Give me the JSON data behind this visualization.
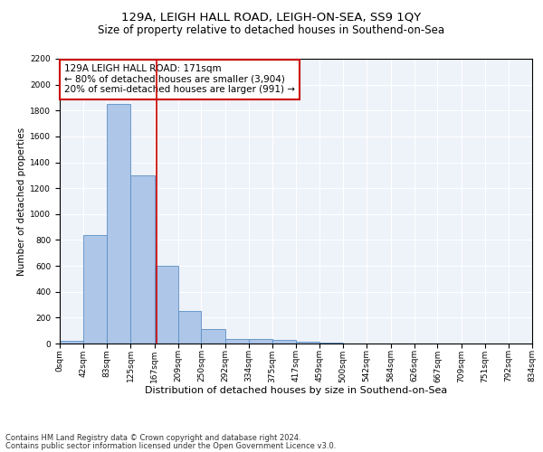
{
  "title1": "129A, LEIGH HALL ROAD, LEIGH-ON-SEA, SS9 1QY",
  "title2": "Size of property relative to detached houses in Southend-on-Sea",
  "xlabel": "Distribution of detached houses by size in Southend-on-Sea",
  "ylabel": "Number of detached properties",
  "footer1": "Contains HM Land Registry data © Crown copyright and database right 2024.",
  "footer2": "Contains public sector information licensed under the Open Government Licence v3.0.",
  "annotation_line1": "129A LEIGH HALL ROAD: 171sqm",
  "annotation_line2": "← 80% of detached houses are smaller (3,904)",
  "annotation_line3": "20% of semi-detached houses are larger (991) →",
  "bar_edges": [
    0,
    42,
    83,
    125,
    167,
    209,
    250,
    292,
    334,
    375,
    417,
    459,
    500,
    542,
    584,
    626,
    667,
    709,
    751,
    792,
    834
  ],
  "bar_heights": [
    20,
    840,
    1850,
    1300,
    600,
    250,
    110,
    35,
    35,
    25,
    15,
    5,
    3,
    2,
    1,
    1,
    0,
    0,
    0,
    0
  ],
  "bar_color": "#aec6e8",
  "bar_edge_color": "#5a8fc4",
  "vline_x": 171,
  "vline_color": "#cc0000",
  "annotation_box_color": "#cc0000",
  "ylim": [
    0,
    2200
  ],
  "yticks": [
    0,
    200,
    400,
    600,
    800,
    1000,
    1200,
    1400,
    1600,
    1800,
    2000,
    2200
  ],
  "tick_labels": [
    "0sqm",
    "42sqm",
    "83sqm",
    "125sqm",
    "167sqm",
    "209sqm",
    "250sqm",
    "292sqm",
    "334sqm",
    "375sqm",
    "417sqm",
    "459sqm",
    "500sqm",
    "542sqm",
    "584sqm",
    "626sqm",
    "667sqm",
    "709sqm",
    "751sqm",
    "792sqm",
    "834sqm"
  ],
  "bg_color": "#eef2f9",
  "grid_color": "#ffffff",
  "title1_fontsize": 9.5,
  "title2_fontsize": 8.5,
  "xlabel_fontsize": 8,
  "ylabel_fontsize": 7.5,
  "tick_fontsize": 6.5,
  "annotation_fontsize": 7.5,
  "footer_fontsize": 6
}
